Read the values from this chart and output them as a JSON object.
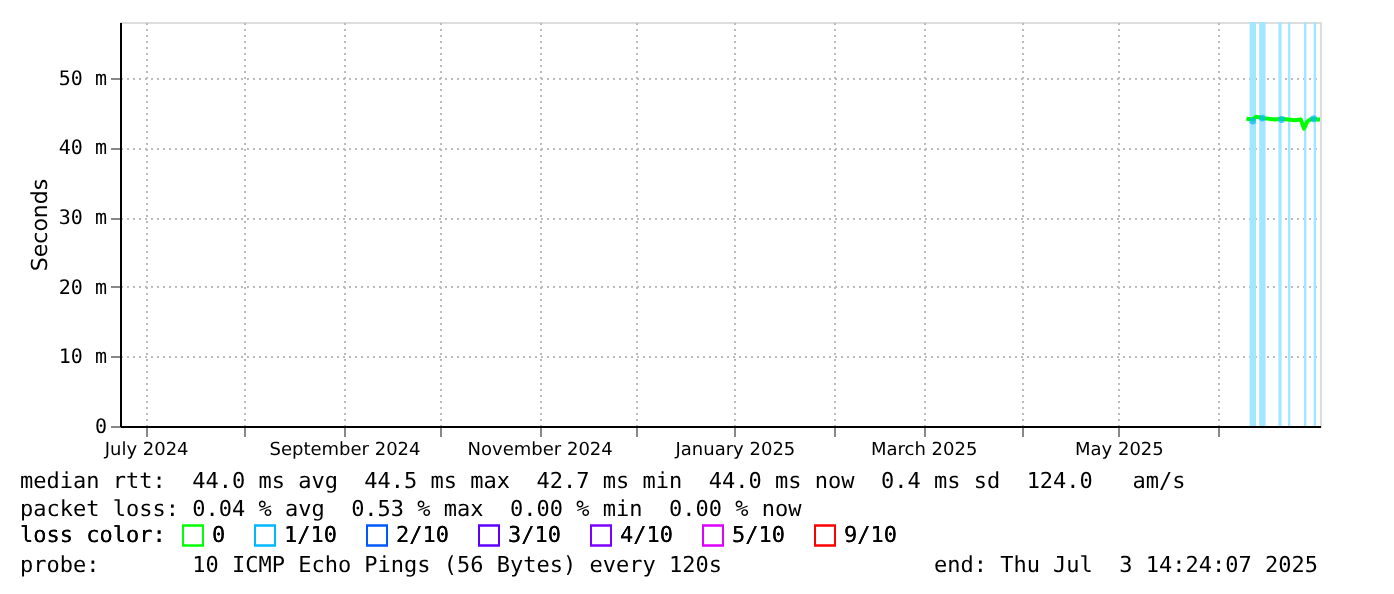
{
  "chart_data": {
    "type": "line",
    "ylabel": "Seconds",
    "legend_title": "loss color:",
    "legend": "bottom",
    "grid": true,
    "marker": "none",
    "xlim": [
      "2024-06-23",
      "2025-07-03"
    ],
    "xticks": [
      {
        "value": "2024-07-01",
        "label": "July 2024"
      },
      {
        "value": "2024-08-01",
        "label": null
      },
      {
        "value": "2024-09-01",
        "label": "September 2024"
      },
      {
        "value": "2024-10-01",
        "label": null
      },
      {
        "value": "2024-11-01",
        "label": "November 2024"
      },
      {
        "value": "2024-12-01",
        "label": null
      },
      {
        "value": "2025-01-01",
        "label": "January 2025"
      },
      {
        "value": "2025-02-01",
        "label": null
      },
      {
        "value": "2025-03-01",
        "label": "March 2025"
      },
      {
        "value": "2025-04-01",
        "label": null
      },
      {
        "value": "2025-05-01",
        "label": "May 2025"
      },
      {
        "value": "2025-06-01",
        "label": null
      }
    ],
    "ylim": [
      0,
      58
    ],
    "yticks": [
      {
        "value": 0,
        "label": "0"
      },
      {
        "value": 10,
        "label": "10 m"
      },
      {
        "value": 20,
        "label": "20 m"
      },
      {
        "value": 30,
        "label": "30 m"
      },
      {
        "value": 40,
        "label": "40 m"
      },
      {
        "value": 50,
        "label": "50 m"
      }
    ],
    "x": [
      "2025-06-10",
      "2025-06-12",
      "2025-06-13",
      "2025-06-15",
      "2025-06-17",
      "2025-06-19",
      "2025-06-21",
      "2025-06-23",
      "2025-06-25",
      "2025-06-27",
      "2025-06-28",
      "2025-06-29",
      "2025-06-30",
      "2025-07-01",
      "2025-07-02",
      "2025-07-03"
    ],
    "series": [
      {
        "name": "0",
        "color": "#00ff00",
        "values": [
          44.1,
          44.0,
          44.4,
          44.2,
          44.1,
          44.0,
          44.1,
          44.0,
          43.9,
          44.0,
          42.7,
          43.7,
          44.0,
          44.1,
          44.0,
          44.0
        ]
      },
      {
        "name": "1/10",
        "type": "scatter",
        "color": "#00b8ff",
        "values": [
          null,
          43.8,
          null,
          44.2,
          null,
          null,
          44.0,
          null,
          null,
          null,
          null,
          null,
          null,
          44.1,
          null,
          null
        ]
      },
      {
        "name": "2/10",
        "type": "scatter",
        "color": "#0059ff",
        "values": [
          null,
          null,
          null,
          null,
          null,
          null,
          null,
          null,
          null,
          null,
          null,
          null,
          null,
          null,
          null,
          null
        ]
      },
      {
        "name": "3/10",
        "type": "scatter",
        "color": "#5e00ff",
        "values": [
          null,
          null,
          null,
          null,
          null,
          null,
          null,
          null,
          null,
          null,
          null,
          null,
          null,
          null,
          null,
          null
        ]
      },
      {
        "name": "4/10",
        "type": "scatter",
        "color": "#7e00ff",
        "values": [
          null,
          null,
          null,
          null,
          null,
          null,
          null,
          null,
          null,
          null,
          null,
          null,
          null,
          null,
          null,
          null
        ]
      },
      {
        "name": "5/10",
        "type": "scatter",
        "color": "#dd00ff",
        "values": [
          null,
          null,
          null,
          null,
          null,
          null,
          null,
          null,
          null,
          null,
          null,
          null,
          null,
          null,
          null,
          null
        ]
      },
      {
        "name": "9/10",
        "type": "scatter",
        "color": "#ff0000",
        "values": [
          null,
          null,
          null,
          null,
          null,
          null,
          null,
          null,
          null,
          null,
          null,
          null,
          null,
          null,
          null,
          null
        ]
      }
    ],
    "bands": [
      {
        "axis": "x",
        "from": "2025-06-11",
        "to": "2025-06-13",
        "color": "#a3e6ff"
      },
      {
        "axis": "x",
        "from": "2025-06-14",
        "to": "2025-06-16",
        "color": "#a3e6ff"
      },
      {
        "axis": "x",
        "from": "2025-06-20",
        "to": "2025-06-21",
        "color": "#a3e6ff"
      },
      {
        "axis": "x",
        "from": "2025-06-23",
        "to": "2025-06-23T18:00",
        "color": "#a3e6ff"
      },
      {
        "axis": "x",
        "from": "2025-06-28",
        "to": "2025-06-28T18:00",
        "color": "#a3e6ff"
      },
      {
        "axis": "x",
        "from": "2025-07-01",
        "to": "2025-07-01T18:00",
        "color": "#a3e6ff"
      }
    ],
    "annotations": [
      "median rtt:  44.0 ms avg  44.5 ms max  42.7 ms min  44.0 ms now  0.4 ms sd  124.0   am/s",
      "packet loss: 0.04 % avg  0.53 % max  0.00 % min  0.00 % now",
      "probe:       10 ICMP Echo Pings (56 Bytes) every 120s                end: Thu Jul  3 14:24:07 2025"
    ]
  }
}
